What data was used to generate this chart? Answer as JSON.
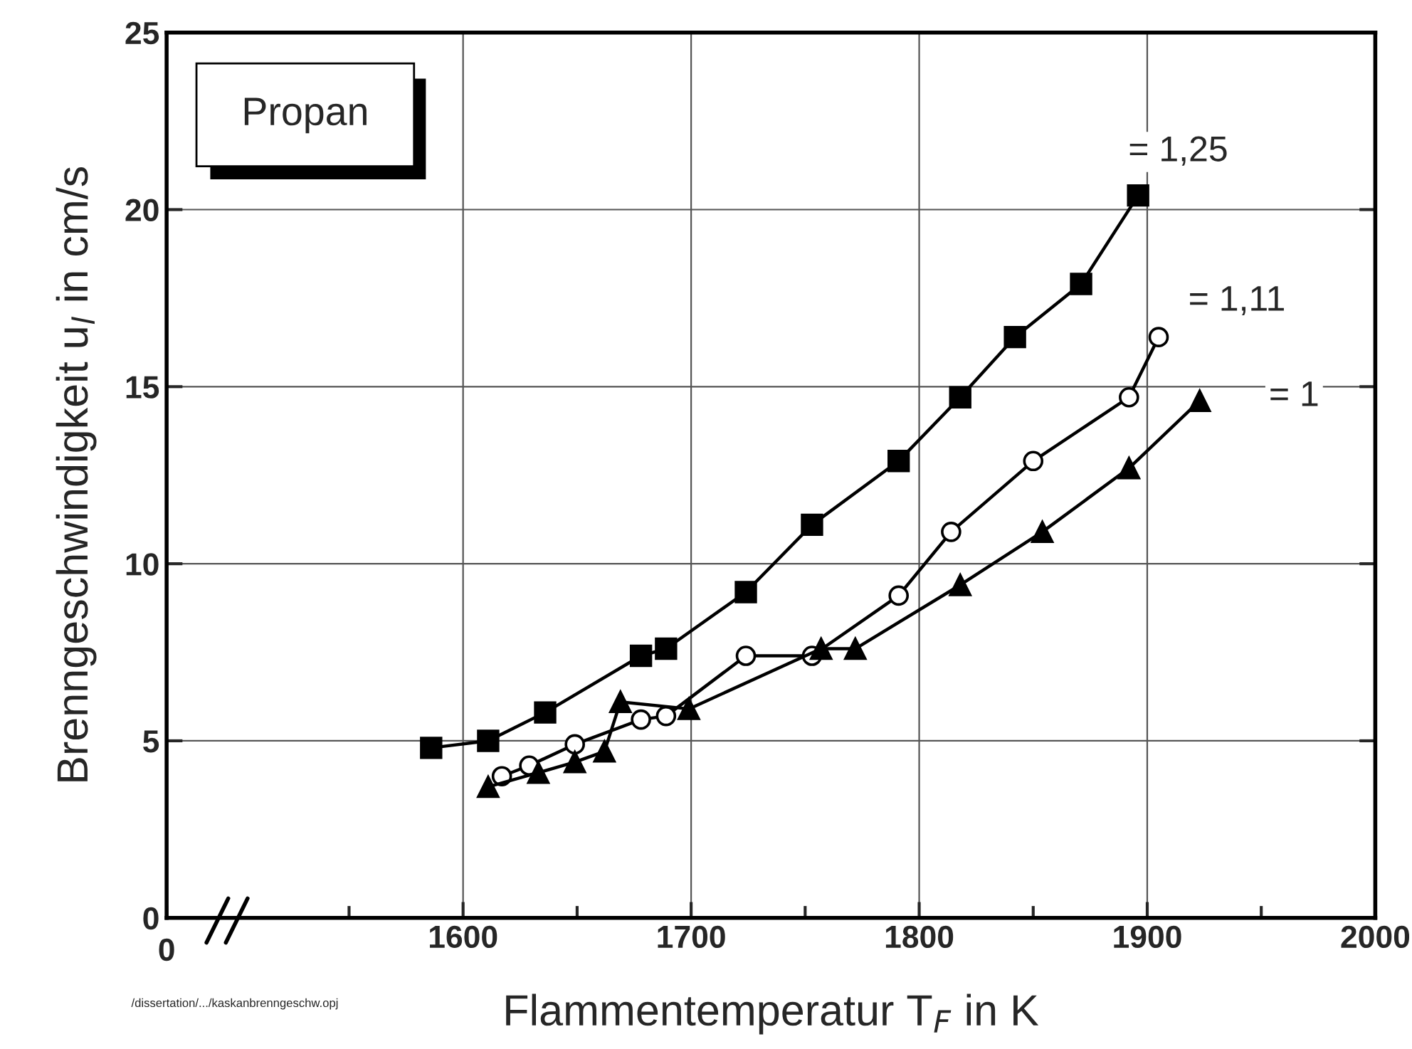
{
  "chart_data": {
    "type": "line",
    "xlabel": "Flammentemperatur T$_{F}$ in K",
    "ylabel": "Brenngeschwindigkeit u$_{l}$ in cm/s",
    "annotations": [
      "Propan",
      "/dissertation/.../kaskanbrenngeschw.opj",
      "0"
    ],
    "xlim": [
      1470,
      2000
    ],
    "xticks": [
      {
        "value": 1470,
        "label": null
      },
      {
        "value": 1550,
        "label": null
      },
      1600,
      {
        "value": 1650,
        "label": null
      },
      1700,
      {
        "value": 1750,
        "label": null
      },
      1800,
      {
        "value": 1850,
        "label": null
      },
      1900,
      {
        "value": 1950,
        "label": null
      },
      2000
    ],
    "ylim": [
      0,
      25
    ],
    "yticks": [
      0,
      5,
      10,
      15,
      20,
      25
    ],
    "grid": true,
    "legend": false,
    "line_style": "solid",
    "series": [
      {
        "name": "= 1,25",
        "color": "#000000",
        "marker": "square",
        "x": [
          1586,
          1611,
          1636,
          1678,
          1689,
          1724,
          1753,
          1791,
          1818,
          1842,
          1871,
          1896
        ],
        "values": [
          4.8,
          5.0,
          5.8,
          7.4,
          7.6,
          9.2,
          11.1,
          12.9,
          14.7,
          16.4,
          17.9,
          20.4
        ]
      },
      {
        "name": "= 1,11",
        "color": "#000000",
        "marker": "circle",
        "x": [
          1617,
          1629,
          1649,
          1678,
          1689,
          1724,
          1753,
          1791,
          1814,
          1850,
          1892,
          1905
        ],
        "values": [
          4.0,
          4.3,
          4.9,
          5.6,
          5.7,
          7.4,
          7.4,
          9.1,
          10.9,
          12.9,
          14.7,
          16.4
        ]
      },
      {
        "name": "= 1",
        "color": "#000000",
        "marker": "triangle",
        "x": [
          1611,
          1633,
          1649,
          1662,
          1669,
          1699,
          1757,
          1772,
          1818,
          1854,
          1892,
          1923
        ],
        "values": [
          3.7,
          4.1,
          4.4,
          4.7,
          6.1,
          5.9,
          7.6,
          7.6,
          9.4,
          10.9,
          12.7,
          14.6
        ]
      }
    ]
  }
}
